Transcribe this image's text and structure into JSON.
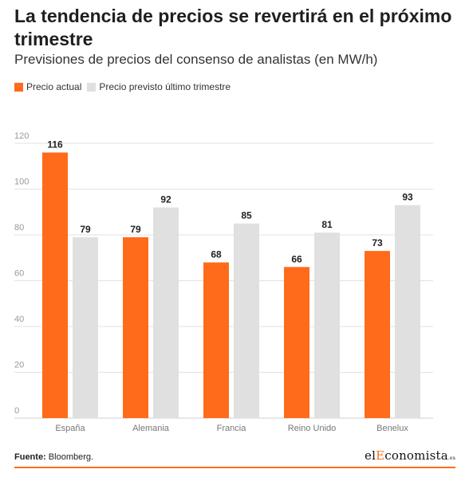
{
  "title": "La tendencia de precios se revertirá en el próximo trimestre",
  "subtitle": "Previsiones de precios del consenso de analistas (en MW/h)",
  "legend": {
    "actual": "Precio actual",
    "previsto": "Precio previsto último trimestre"
  },
  "colors": {
    "actual": "#ff6b1a",
    "previsto": "#e0e0e0",
    "grid": "#e2e2e2",
    "axis_text": "#999999",
    "accent": "#ff6b1a"
  },
  "footer": {
    "source_label": "Fuente:",
    "source_value": "Bloomberg."
  },
  "logo": {
    "part1": "el",
    "part2": "E",
    "part3": "conomista",
    "tld": ".es"
  },
  "chart_data": {
    "type": "bar",
    "categories": [
      "España",
      "Alemania",
      "Francia",
      "Reino Unido",
      "Benelux"
    ],
    "series": [
      {
        "name": "Precio actual",
        "values": [
          116,
          79,
          68,
          66,
          73
        ]
      },
      {
        "name": "Precio previsto último trimestre",
        "values": [
          79,
          92,
          85,
          81,
          93
        ]
      }
    ],
    "ylim": [
      0,
      120
    ],
    "yticks": [
      0,
      20,
      40,
      60,
      80,
      100,
      120
    ],
    "grid": true,
    "legend_position": "top-left",
    "data_labels": true
  }
}
